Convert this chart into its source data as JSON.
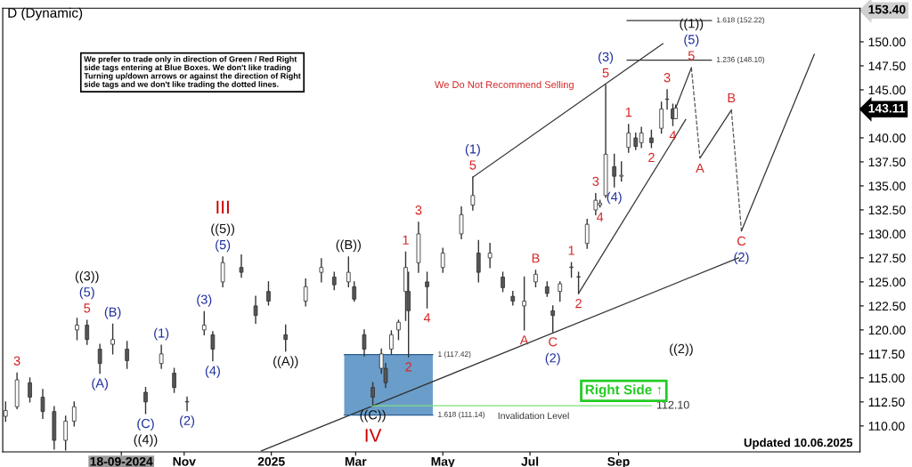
{
  "chart_data": {
    "type": "candlestick",
    "title": "D (Dynamic)",
    "x": [
      "2024-06-29",
      "2024-07-07",
      "2024-07-16",
      "2024-07-25",
      "2024-08-02",
      "2024-08-10",
      "2024-08-16",
      "2024-08-18",
      "2024-08-25",
      "2024-09-03",
      "2024-09-12",
      "2024-09-22",
      "2024-10-05",
      "2024-10-16",
      "2024-10-25",
      "2024-11-03",
      "2024-11-15",
      "2024-11-21",
      "2024-11-28",
      "2024-12-11",
      "2024-12-21",
      "2024-12-30",
      "2025-01-11",
      "2025-01-25",
      "2025-02-05",
      "2025-02-14",
      "2025-02-24",
      "2025-02-28",
      "2025-03-07",
      "2025-03-13",
      "2025-03-19",
      "2025-03-22",
      "2025-03-26",
      "2025-03-31",
      "2025-04-05",
      "2025-04-07",
      "2025-04-14",
      "2025-04-20",
      "2025-05-01",
      "2025-05-14",
      "2025-05-22",
      "2025-05-26",
      "2025-06-03",
      "2025-06-12",
      "2025-06-19",
      "2025-06-27",
      "2025-07-05",
      "2025-07-13",
      "2025-07-17",
      "2025-07-22",
      "2025-07-30",
      "2025-08-04",
      "2025-08-10",
      "2025-08-16",
      "2025-08-19",
      "2025-08-23",
      "2025-08-29",
      "2025-09-03",
      "2025-09-08",
      "2025-09-13",
      "2025-09-17",
      "2025-09-24",
      "2025-10-01",
      "2025-10-05",
      "2025-10-09",
      "2025-10-11"
    ],
    "ohlc": [
      [
        111.0,
        112.5,
        110.5,
        111.6
      ],
      [
        112.0,
        115.5,
        111.8,
        114.8
      ],
      [
        114.5,
        115.0,
        112.5,
        113.0
      ],
      [
        113.0,
        113.8,
        110.8,
        111.5
      ],
      [
        111.5,
        112.0,
        107.6,
        108.5
      ],
      [
        108.5,
        111.0,
        107.5,
        110.5
      ],
      [
        110.5,
        112.5,
        110.0,
        112.0
      ],
      [
        120.0,
        121.2,
        119.0,
        120.5
      ],
      [
        120.5,
        121.0,
        118.5,
        119.0
      ],
      [
        118.0,
        118.5,
        115.5,
        116.5
      ],
      [
        118.5,
        120.6,
        117.5,
        119.0
      ],
      [
        118.0,
        118.8,
        116.0,
        116.8
      ],
      [
        113.5,
        114.0,
        111.3,
        112.5
      ],
      [
        116.5,
        118.4,
        116.0,
        117.5
      ],
      [
        115.5,
        116.0,
        113.5,
        114.0
      ],
      [
        112.5,
        113.0,
        111.6,
        112.5
      ],
      [
        120.0,
        121.9,
        119.5,
        120.5
      ],
      [
        119.5,
        119.8,
        116.8,
        118.0
      ],
      [
        125.0,
        127.6,
        124.5,
        127.0
      ],
      [
        126.5,
        127.8,
        125.5,
        126.0
      ],
      [
        122.5,
        123.5,
        120.7,
        121.5
      ],
      [
        124.0,
        125.0,
        122.6,
        123.0
      ],
      [
        119.5,
        120.5,
        117.8,
        119.0
      ],
      [
        123.0,
        125.3,
        122.5,
        124.5
      ],
      [
        126.0,
        127.4,
        125.0,
        126.5
      ],
      [
        125.5,
        126.0,
        124.2,
        124.7
      ],
      [
        125.0,
        127.6,
        124.5,
        126.0
      ],
      [
        124.5,
        125.0,
        123.0,
        123.2
      ],
      [
        119.5,
        120.0,
        117.3,
        118.0
      ],
      [
        114.0,
        114.5,
        112.2,
        113.0
      ],
      [
        116.0,
        118.0,
        115.5,
        117.5
      ],
      [
        116.0,
        116.5,
        114.0,
        114.5
      ],
      [
        118.0,
        119.9,
        117.5,
        119.5
      ],
      [
        120.0,
        121.0,
        119.0,
        120.8
      ],
      [
        124.0,
        128.1,
        121.0,
        126.5
      ],
      [
        124.0,
        126.0,
        117.2,
        122.0
      ],
      [
        127.0,
        131.2,
        126.0,
        130.0
      ],
      [
        125.0,
        126.0,
        122.3,
        124.5
      ],
      [
        126.5,
        128.5,
        126.0,
        128.0
      ],
      [
        130.0,
        132.8,
        129.5,
        132.0
      ],
      [
        133.0,
        135.9,
        132.5,
        134.0
      ],
      [
        128.0,
        129.3,
        125.0,
        126.0
      ],
      [
        127.5,
        129.0,
        126.5,
        128.0
      ],
      [
        125.5,
        126.0,
        124.0,
        124.4
      ],
      [
        123.5,
        124.0,
        122.6,
        123.0
      ],
      [
        122.5,
        125.5,
        120.0,
        123.0
      ],
      [
        125.0,
        126.2,
        124.5,
        125.8
      ],
      [
        124.5,
        125.0,
        123.5,
        123.8
      ],
      [
        122.0,
        122.5,
        119.8,
        121.5
      ],
      [
        124.0,
        125.0,
        123.0,
        124.8
      ],
      [
        126.5,
        127.0,
        125.5,
        126.5
      ],
      [
        125.5,
        126.0,
        123.8,
        125.5
      ],
      [
        129.0,
        131.5,
        128.5,
        131.0
      ],
      [
        132.5,
        134.2,
        132.0,
        133.5
      ],
      [
        133.0,
        133.5,
        132.8,
        133.2
      ],
      [
        134.0,
        145.5,
        133.8,
        138.3
      ],
      [
        137.0,
        138.3,
        134.9,
        136.0
      ],
      [
        136.0,
        137.5,
        135.5,
        136.1
      ],
      [
        139.0,
        141.4,
        138.5,
        140.5
      ],
      [
        140.0,
        140.5,
        138.8,
        139.1
      ],
      [
        139.5,
        141.1,
        139.0,
        140.5
      ],
      [
        140.0,
        140.8,
        139.0,
        139.5
      ],
      [
        141.0,
        143.7,
        140.5,
        143.0
      ],
      [
        144.0,
        145.0,
        143.0,
        144.0
      ],
      [
        143.0,
        143.5,
        141.3,
        142.0
      ],
      [
        142.0,
        143.4,
        142.0,
        143.11
      ]
    ],
    "series": [
      {
        "type": "line",
        "color": "#333333",
        "x": [
          "2024-12-25",
          "2025-11-24"
        ],
        "values": [
          107.4,
          127.5
        ]
      },
      {
        "type": "line",
        "color": "#333333",
        "x": [
          "2025-05-22",
          "2025-10-02"
        ],
        "values": [
          135.9,
          149.8
        ]
      },
      {
        "type": "line",
        "color": "#333333",
        "x": [
          "2025-08-04",
          "2025-10-18"
        ],
        "values": [
          123.8,
          141.9
        ]
      },
      {
        "type": "line",
        "color": "#333333",
        "line_style": "solid",
        "x": [
          "2025-10-11",
          "2025-10-22"
        ],
        "values": [
          143.11,
          147.3
        ]
      },
      {
        "type": "line",
        "color": "#555555",
        "line_style": "dashed",
        "x": [
          "2025-10-22",
          "2025-10-28"
        ],
        "values": [
          147.3,
          137.9
        ]
      },
      {
        "type": "line",
        "color": "#333333",
        "line_style": "solid",
        "x": [
          "2025-10-28",
          "2025-11-19"
        ],
        "values": [
          137.9,
          142.9
        ]
      },
      {
        "type": "line",
        "color": "#555555",
        "line_style": "dashed",
        "x": [
          "2025-11-19",
          "2025-11-26"
        ],
        "values": [
          142.9,
          130.3
        ]
      },
      {
        "type": "line",
        "color": "#333333",
        "line_style": "solid",
        "x": [
          "2025-11-26",
          "2026-01-16"
        ],
        "values": [
          130.3,
          148.7
        ]
      },
      {
        "type": "line",
        "color": "#333333",
        "x": [
          "2025-09-07",
          "2025-11-05"
        ],
        "values": [
          152.22,
          152.22
        ]
      },
      {
        "type": "line",
        "color": "#333333",
        "x": [
          "2025-09-07",
          "2025-11-05"
        ],
        "values": [
          148.1,
          148.1
        ]
      },
      {
        "type": "line",
        "color": "#7ee07e",
        "x": [
          "2025-03-12",
          "2025-09-24"
        ],
        "values": [
          112.1,
          112.1
        ]
      },
      {
        "type": "line",
        "color": "#2a5d8f",
        "x": [
          "2025-02-21",
          "2025-04-24"
        ],
        "values": [
          117.42,
          117.42
        ],
        "lower": [
          111.14,
          111.14
        ],
        "upper": [
          117.42,
          117.42
        ]
      },
      {
        "type": "line",
        "color": "#2a5d8f",
        "x": [
          "2025-02-21",
          "2025-04-24"
        ],
        "values": [
          111.14,
          111.14
        ]
      }
    ],
    "annotations": [
      "We prefer to trade only in direction of Green / Red Right\nside tags entering at Blue Boxes. We don't like trading\nTurning up/down arrows or against the direction of Right\nside tags and we don't like trading the dotted lines.",
      "We Do Not Recommend Selling",
      "Right Side ↑",
      "Updated 10.06.2025",
      "Invalidation Level",
      "((2))",
      {
        "text": "1.618 (152.22)",
        "x": "2025-11-05",
        "y": 152.22
      },
      {
        "text": "1.236 (148.10)",
        "x": "2025-11-05",
        "y": 148.1
      },
      {
        "text": "1 (117.42)",
        "x": "2025-04-24",
        "y": 117.42
      },
      {
        "text": "1.618 (111.14)",
        "x": "2025-04-24",
        "y": 111.14
      },
      {
        "text": "112.10",
        "x": "2025-09-24",
        "y": 112.1
      },
      {
        "text": "3",
        "x": "2024-07-07",
        "y": 115.5
      },
      {
        "text": "5",
        "x": "2024-08-25",
        "y": 121.0
      },
      {
        "text": "(5)",
        "x": "2024-08-25",
        "y": 121.0
      },
      {
        "text": "((3))",
        "x": "2024-08-25",
        "y": 121.0
      },
      {
        "text": "(A)",
        "x": "2024-09-03",
        "y": 115.5
      },
      {
        "text": "(B)",
        "x": "2024-09-12",
        "y": 120.6
      },
      {
        "text": "(C)",
        "x": "2024-10-05",
        "y": 111.3
      },
      {
        "text": "((4))",
        "x": "2024-10-05",
        "y": 111.3
      },
      {
        "text": "(1)",
        "x": "2024-10-16",
        "y": 118.4
      },
      {
        "text": "(2)",
        "x": "2024-11-03",
        "y": 111.6
      },
      {
        "text": "(3)",
        "x": "2024-11-15",
        "y": 121.9
      },
      {
        "text": "(4)",
        "x": "2024-11-21",
        "y": 116.8
      },
      {
        "text": "(5)",
        "x": "2024-11-28",
        "y": 127.6
      },
      {
        "text": "((5))",
        "x": "2024-11-28",
        "y": 127.6
      },
      {
        "text": "III",
        "x": "2024-11-28",
        "y": 127.6
      },
      {
        "text": "((A))",
        "x": "2025-01-11",
        "y": 117.8
      },
      {
        "text": "((B))",
        "x": "2025-02-24",
        "y": 127.6
      },
      {
        "text": "((C))",
        "x": "2025-03-13",
        "y": 112.2
      },
      {
        "text": "IV",
        "x": "2025-03-13",
        "y": 112.2
      },
      {
        "text": "1",
        "x": "2025-04-05",
        "y": 128.1
      },
      {
        "text": "2",
        "x": "2025-04-07",
        "y": 117.2
      },
      {
        "text": "3",
        "x": "2025-04-14",
        "y": 131.2
      },
      {
        "text": "4",
        "x": "2025-04-20",
        "y": 122.3
      },
      {
        "text": "5",
        "x": "2025-05-22",
        "y": 135.9
      },
      {
        "text": "(1)",
        "x": "2025-05-22",
        "y": 135.9
      },
      {
        "text": "A",
        "x": "2025-06-27",
        "y": 120.0
      },
      {
        "text": "B",
        "x": "2025-07-05",
        "y": 126.2
      },
      {
        "text": "C",
        "x": "2025-07-17",
        "y": 119.8
      },
      {
        "text": "(2)",
        "x": "2025-07-17",
        "y": 119.8
      },
      {
        "text": "1",
        "x": "2025-07-30",
        "y": 127.0
      },
      {
        "text": "2",
        "x": "2025-08-04",
        "y": 123.8
      },
      {
        "text": "3",
        "x": "2025-08-16",
        "y": 134.2
      },
      {
        "text": "4",
        "x": "2025-08-19",
        "y": 132.8
      },
      {
        "text": "5",
        "x": "2025-08-23",
        "y": 145.5
      },
      {
        "text": "(3)",
        "x": "2025-08-23",
        "y": 145.5
      },
      {
        "text": "(4)",
        "x": "2025-08-29",
        "y": 134.9
      },
      {
        "text": "1",
        "x": "2025-09-08",
        "y": 141.4
      },
      {
        "text": "2",
        "x": "2025-09-24",
        "y": 139.0
      },
      {
        "text": "3",
        "x": "2025-10-05",
        "y": 145.0
      },
      {
        "text": "4",
        "x": "2025-10-09",
        "y": 141.3
      },
      {
        "text": "5",
        "x": "2025-10-22",
        "y": 147.3
      },
      {
        "text": "(5)",
        "x": "2025-10-22",
        "y": 147.3
      },
      {
        "text": "((1))",
        "x": "2025-10-22",
        "y": 147.3
      },
      {
        "text": "A",
        "x": "2025-10-28",
        "y": 137.9
      },
      {
        "text": "B",
        "x": "2025-11-19",
        "y": 142.9
      },
      {
        "text": "C",
        "x": "2025-11-26",
        "y": 130.3
      },
      {
        "text": "(2)",
        "x": "2025-11-26",
        "y": 130.3
      }
    ],
    "xlim": [
      "2024-06-27",
      "2026-02-17"
    ],
    "xticks": [
      {
        "value": "2024-09-18",
        "label": "18-09-2024"
      },
      {
        "value": "2024-11-01",
        "label": "Nov"
      },
      {
        "value": "2025-01-01",
        "label": "2025"
      },
      {
        "value": "2025-03-01",
        "label": "Mar"
      },
      {
        "value": "2025-05-01",
        "label": "May"
      },
      {
        "value": "2025-07-01",
        "label": "Jul"
      },
      {
        "value": "2025-09-01",
        "label": "Sep"
      }
    ],
    "ylim": [
      107.3,
      153.5
    ],
    "yticks": [
      {
        "value": 110,
        "label": "110.00"
      },
      {
        "value": 112.5,
        "label": "112.50"
      },
      {
        "value": 115,
        "label": "115.00"
      },
      {
        "value": 117.5,
        "label": "117.50"
      },
      {
        "value": 120,
        "label": "120.00"
      },
      {
        "value": 122.5,
        "label": "122.50"
      },
      {
        "value": 125,
        "label": "125.00"
      },
      {
        "value": 127.5,
        "label": "127.50"
      },
      {
        "value": 130,
        "label": "130.00"
      },
      {
        "value": 132.5,
        "label": "132.50"
      },
      {
        "value": 135,
        "label": "135.00"
      },
      {
        "value": 137.5,
        "label": "137.50"
      },
      {
        "value": 140,
        "label": "140.00"
      },
      {
        "value": 145,
        "label": "145.00"
      },
      {
        "value": 147.5,
        "label": "147.50"
      },
      {
        "value": 150,
        "label": "150.00"
      },
      {
        "value": 143.11,
        "label": "143.11"
      },
      {
        "value": 153.4,
        "label": "153.40"
      }
    ],
    "grid": false,
    "legend": false
  }
}
